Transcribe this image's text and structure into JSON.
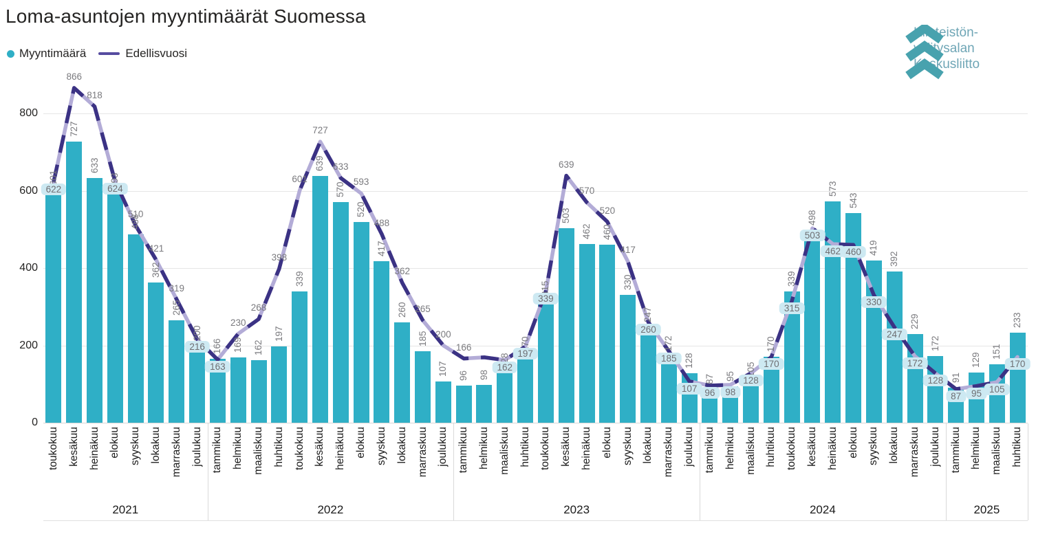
{
  "title": "Loma-asuntojen myyntimäärät Suomessa",
  "legend": {
    "bar_series_label": "Myyntimäärä",
    "line_series_label": "Edellisvuosi"
  },
  "logo": {
    "line1": "Kiinteistön-",
    "line2": "välitysalan",
    "line3": "Keskusliitto"
  },
  "colors": {
    "bar": "#2FAFC6",
    "line_dark": "#3B3284",
    "line_light": "#B3ACD7",
    "legend_line": "#564CA0",
    "label_gray": "#7A7A7E",
    "label_box_bg": "#CDE9F2",
    "gridline": "#E6E6E6",
    "logo_teal": "#48A2AE",
    "logo_text": "#6FA6B6"
  },
  "chart_data": {
    "type": "bar",
    "subtype": "combo-bar-line",
    "title": "Loma-asuntojen myyntimäärät Suomessa",
    "xlabel": "",
    "ylabel": "",
    "ylim": [
      0,
      900
    ],
    "yticks": [
      0,
      200,
      400,
      600,
      800
    ],
    "grid": true,
    "legend_position": "top-left",
    "series": [
      {
        "name": "Myyntimäärä",
        "type": "bar"
      },
      {
        "name": "Edellisvuosi",
        "type": "line"
      }
    ],
    "points": [
      {
        "year": "2021",
        "month": "toukokuu",
        "bar": 601,
        "line": 622,
        "boxed": true
      },
      {
        "year": "2021",
        "month": "kesäkuu",
        "bar": 727,
        "line": 866,
        "boxed": false
      },
      {
        "year": "2021",
        "month": "heinäkuu",
        "bar": 633,
        "line": 818,
        "boxed": false
      },
      {
        "year": "2021",
        "month": "elokuu",
        "bar": 593,
        "line": 624,
        "boxed": true
      },
      {
        "year": "2021",
        "month": "syyskuu",
        "bar": 488,
        "line": 510,
        "boxed": false
      },
      {
        "year": "2021",
        "month": "lokakuu",
        "bar": 362,
        "line": 421,
        "boxed": false
      },
      {
        "year": "2021",
        "month": "marraskuu",
        "bar": 265,
        "line": 319,
        "boxed": false
      },
      {
        "year": "2021",
        "month": "joulukuu",
        "bar": 200,
        "line": 216,
        "boxed": true
      },
      {
        "year": "2022",
        "month": "tammikuu",
        "bar": 166,
        "line": 163,
        "boxed": true
      },
      {
        "year": "2022",
        "month": "helmikuu",
        "bar": 169,
        "line": 230,
        "boxed": false
      },
      {
        "year": "2022",
        "month": "maaliskuu",
        "bar": 162,
        "line": 268,
        "boxed": false
      },
      {
        "year": "2022",
        "month": "huhtikuu",
        "bar": 197,
        "line": 398,
        "boxed": false
      },
      {
        "year": "2022",
        "month": "toukokuu",
        "bar": 339,
        "line": 601,
        "boxed": false
      },
      {
        "year": "2022",
        "month": "kesäkuu",
        "bar": 639,
        "line": 727,
        "boxed": false
      },
      {
        "year": "2022",
        "month": "heinäkuu",
        "bar": 570,
        "line": 633,
        "boxed": false
      },
      {
        "year": "2022",
        "month": "elokuu",
        "bar": 520,
        "line": 593,
        "boxed": false
      },
      {
        "year": "2022",
        "month": "syyskuu",
        "bar": 417,
        "line": 488,
        "boxed": false
      },
      {
        "year": "2022",
        "month": "lokakuu",
        "bar": 260,
        "line": 362,
        "boxed": false
      },
      {
        "year": "2022",
        "month": "marraskuu",
        "bar": 185,
        "line": 265,
        "boxed": false
      },
      {
        "year": "2022",
        "month": "joulukuu",
        "bar": 107,
        "line": 200,
        "boxed": false
      },
      {
        "year": "2023",
        "month": "tammikuu",
        "bar": 96,
        "line": 166,
        "boxed": false
      },
      {
        "year": "2023",
        "month": "helmikuu",
        "bar": 98,
        "line": 169,
        "boxed": false,
        "line_label_hidden": true
      },
      {
        "year": "2023",
        "month": "maaliskuu",
        "bar": 128,
        "line": 162,
        "boxed": true
      },
      {
        "year": "2023",
        "month": "huhtikuu",
        "bar": 170,
        "line": 197,
        "boxed": true
      },
      {
        "year": "2023",
        "month": "toukokuu",
        "bar": 315,
        "line": 339,
        "boxed": true
      },
      {
        "year": "2023",
        "month": "kesäkuu",
        "bar": 503,
        "line": 639,
        "boxed": false
      },
      {
        "year": "2023",
        "month": "heinäkuu",
        "bar": 462,
        "line": 570,
        "boxed": false
      },
      {
        "year": "2023",
        "month": "elokuu",
        "bar": 460,
        "line": 520,
        "boxed": false
      },
      {
        "year": "2023",
        "month": "syyskuu",
        "bar": 330,
        "line": 417,
        "boxed": false
      },
      {
        "year": "2023",
        "month": "lokakuu",
        "bar": 247,
        "line": 260,
        "boxed": true
      },
      {
        "year": "2023",
        "month": "marraskuu",
        "bar": 172,
        "line": 185,
        "boxed": true
      },
      {
        "year": "2023",
        "month": "joulukuu",
        "bar": 128,
        "line": 107,
        "boxed": true
      },
      {
        "year": "2024",
        "month": "tammikuu",
        "bar": 87,
        "line": 96,
        "boxed": true
      },
      {
        "year": "2024",
        "month": "helmikuu",
        "bar": 95,
        "line": 98,
        "boxed": true
      },
      {
        "year": "2024",
        "month": "maaliskuu",
        "bar": 105,
        "line": 128,
        "boxed": true
      },
      {
        "year": "2024",
        "month": "huhtikuu",
        "bar": 170,
        "line": 170,
        "boxed": true
      },
      {
        "year": "2024",
        "month": "toukokuu",
        "bar": 339,
        "line": 315,
        "boxed": true
      },
      {
        "year": "2024",
        "month": "kesäkuu",
        "bar": 498,
        "line": 503,
        "boxed": true
      },
      {
        "year": "2024",
        "month": "heinäkuu",
        "bar": 573,
        "line": 462,
        "boxed": true
      },
      {
        "year": "2024",
        "month": "elokuu",
        "bar": 543,
        "line": 460,
        "boxed": true
      },
      {
        "year": "2024",
        "month": "syyskuu",
        "bar": 419,
        "line": 330,
        "boxed": true
      },
      {
        "year": "2024",
        "month": "lokakuu",
        "bar": 392,
        "line": 247,
        "boxed": true
      },
      {
        "year": "2024",
        "month": "marraskuu",
        "bar": 229,
        "line": 172,
        "boxed": true
      },
      {
        "year": "2024",
        "month": "joulukuu",
        "bar": 172,
        "line": 128,
        "boxed": true
      },
      {
        "year": "2025",
        "month": "tammikuu",
        "bar": 91,
        "line": 87,
        "boxed": true
      },
      {
        "year": "2025",
        "month": "helmikuu",
        "bar": 129,
        "line": 95,
        "boxed": true
      },
      {
        "year": "2025",
        "month": "maaliskuu",
        "bar": 151,
        "line": 105,
        "boxed": true
      },
      {
        "year": "2025",
        "month": "huhtikuu",
        "bar": 233,
        "line": 170,
        "boxed": true
      }
    ]
  }
}
